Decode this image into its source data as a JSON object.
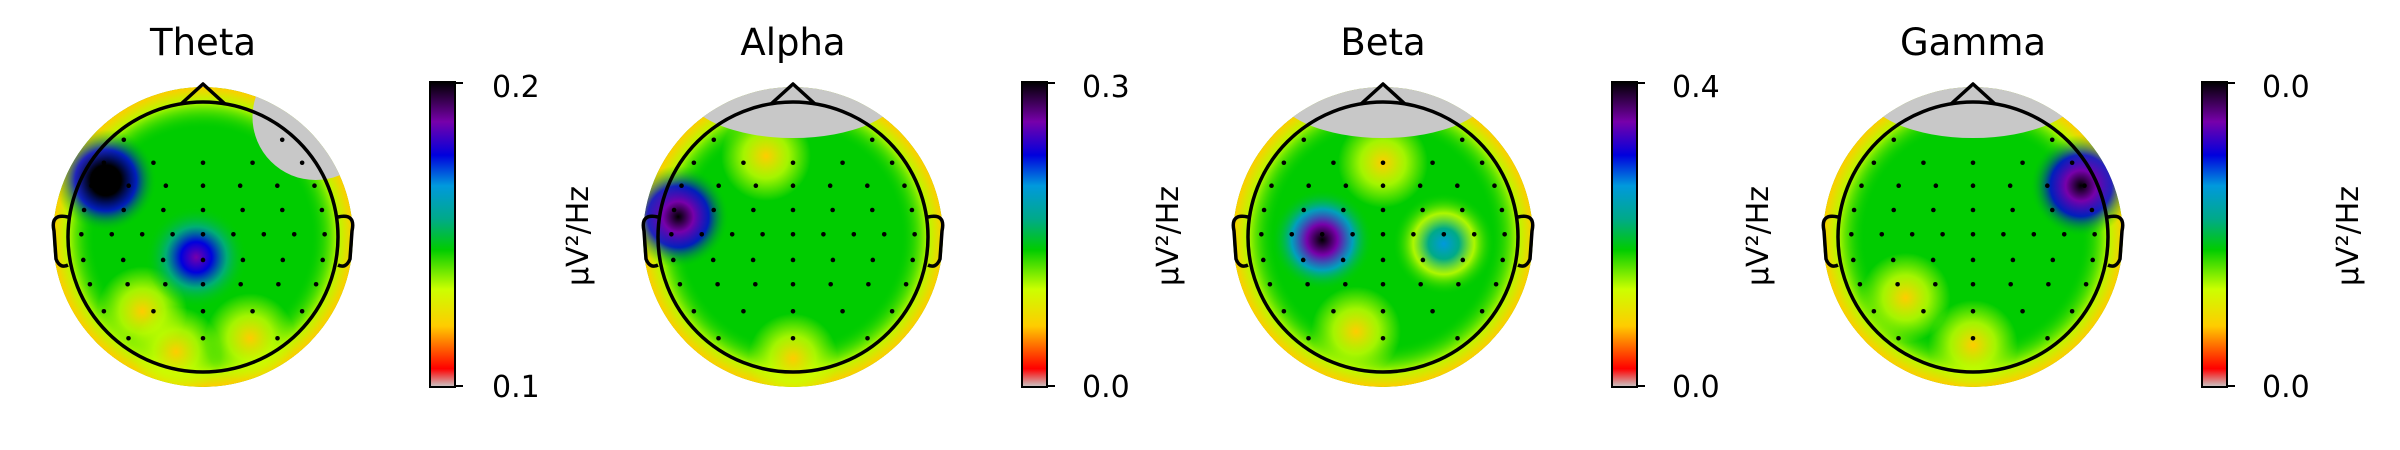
{
  "figure": {
    "type": "eeg-topomap-grid"
  },
  "chart_data": [
    {
      "type": "heatmap",
      "title": "Theta",
      "colorbar": {
        "label": "μV²/Hz",
        "vmin_label": "0.1",
        "vmax_label": "0.2",
        "vmin": 0.1,
        "vmax": 0.2
      },
      "colormap": "nipy_spectral",
      "peaks": [
        {
          "u": -0.72,
          "v": -0.42,
          "level": 1.0
        },
        {
          "u": -0.05,
          "v": 0.15,
          "level": 0.82
        }
      ],
      "lows": [
        {
          "u": -0.45,
          "v": 0.55
        },
        {
          "u": 0.35,
          "v": 0.75
        },
        {
          "u": -0.2,
          "v": 0.85
        }
      ],
      "masked_region": "top-right"
    },
    {
      "type": "heatmap",
      "title": "Alpha",
      "colorbar": {
        "label": "μV²/Hz",
        "vmin_label": "0.0",
        "vmax_label": "0.3",
        "vmin": 0.0,
        "vmax": 0.3
      },
      "colormap": "nipy_spectral",
      "peaks": [
        {
          "u": -0.85,
          "v": -0.15,
          "level": 0.95
        }
      ],
      "lows": [
        {
          "u": 0.0,
          "v": 0.9
        },
        {
          "u": -0.2,
          "v": -0.6
        }
      ],
      "masked_region": "top"
    },
    {
      "type": "heatmap",
      "title": "Beta",
      "colorbar": {
        "label": "μV²/Hz",
        "vmin_label": "0.0",
        "vmax_label": "0.4",
        "vmin": 0.0,
        "vmax": 0.4
      },
      "colormap": "nipy_spectral",
      "peaks": [
        {
          "u": -0.45,
          "v": 0.02,
          "level": 0.92
        },
        {
          "u": 0.45,
          "v": 0.05,
          "level": 0.6
        }
      ],
      "lows": [
        {
          "u": -0.2,
          "v": 0.7
        },
        {
          "u": 0.0,
          "v": -0.55
        }
      ],
      "masked_region": "top"
    },
    {
      "type": "heatmap",
      "title": "Gamma",
      "colorbar": {
        "label": "μV²/Hz",
        "vmin_label": "0.0",
        "vmax_label": "0.0",
        "vmin": 0.0,
        "vmax": 0.0
      },
      "colormap": "nipy_spectral",
      "peaks": [
        {
          "u": 0.8,
          "v": -0.38,
          "level": 0.95
        }
      ],
      "lows": [
        {
          "u": -0.5,
          "v": 0.45
        },
        {
          "u": 0.0,
          "v": 0.8
        }
      ],
      "masked_region": "top"
    }
  ],
  "colors": {
    "outline": "#000000",
    "masked": "#c8c8c8",
    "background": "#ffffff"
  }
}
